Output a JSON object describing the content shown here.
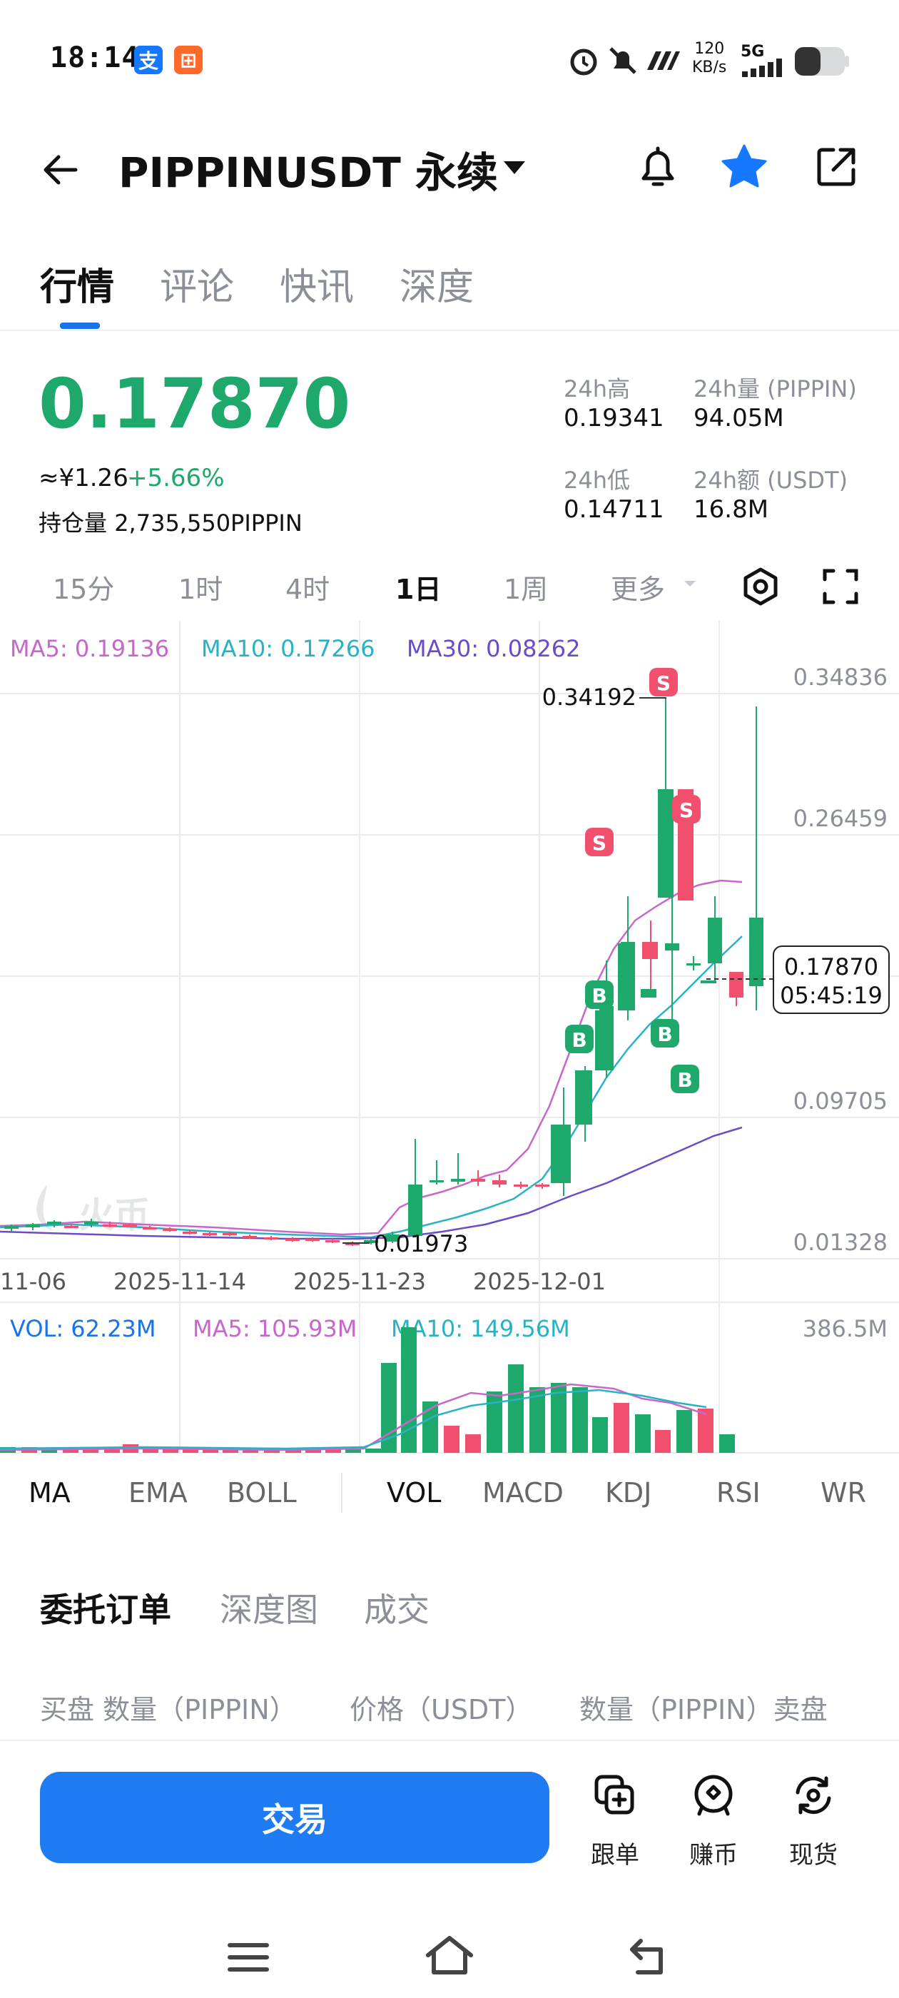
{
  "status_bar": {
    "time": "18:14",
    "net_speed": "120",
    "net_unit": "KB/s",
    "network": "5G"
  },
  "header": {
    "title": "PIPPINUSDT 永续"
  },
  "tabs": [
    {
      "label": "行情",
      "active": true
    },
    {
      "label": "评论"
    },
    {
      "label": "快讯"
    },
    {
      "label": "深度"
    }
  ],
  "price_panel": {
    "last_price": "0.17870",
    "cny_price": "≈¥1.26",
    "change_pct": "+5.66%",
    "open_interest_label": "持仓量",
    "open_interest_value": "2,735,550PIPPIN",
    "high_label": "24h高",
    "high_value": "0.19341",
    "vol_label": "24h量 (PIPPIN)",
    "vol_value": "94.05M",
    "low_label": "24h低",
    "low_value": "0.14711",
    "amount_label": "24h额 (USDT)",
    "amount_value": "16.8M",
    "colors": {
      "up": "#1fa86b",
      "down": "#f0506e"
    }
  },
  "intervals": [
    {
      "label": "15分"
    },
    {
      "label": "1时"
    },
    {
      "label": "4时"
    },
    {
      "label": "1日",
      "active": true
    },
    {
      "label": "1周"
    },
    {
      "label": "更多"
    }
  ],
  "chart": {
    "ma_legend": {
      "ma5": "MA5: 0.19136",
      "ma10": "MA10: 0.17266",
      "ma30": "MA30: 0.08262"
    },
    "price_labels": [
      "0.34836",
      "0.26459",
      "0.09705",
      "0.01328"
    ],
    "high_marker": "0.34192",
    "low_marker": "0.01973",
    "current_price_tag": "0.17870",
    "countdown": "05:45:19",
    "date_labels": [
      "11-06",
      "2025-11-14",
      "2025-11-23",
      "2025-12-01"
    ],
    "watermark": "火币",
    "vol_legend": {
      "vol": "VOL: 62.23M",
      "ma5": "MA5: 105.93M",
      "ma10": "MA10: 149.56M",
      "max": "386.5M"
    },
    "signal_labels": {
      "sell": "S",
      "buy": "B"
    },
    "colors": {
      "ma5": "#c966c9",
      "ma10": "#27b3c4",
      "ma30": "#6a4bc9",
      "vol_label": "#1a73e8"
    }
  },
  "indicators": [
    {
      "label": "MA"
    },
    {
      "label": "EMA"
    },
    {
      "label": "BOLL"
    },
    {
      "label": "VOL"
    },
    {
      "label": "MACD"
    },
    {
      "label": "KDJ"
    },
    {
      "label": "RSI"
    },
    {
      "label": "WR"
    }
  ],
  "order_tabs": [
    {
      "label": "委托订单",
      "active": true
    },
    {
      "label": "深度图"
    },
    {
      "label": "成交"
    }
  ],
  "order_header": {
    "bid": "买盘 数量（PIPPIN）",
    "price": "价格（USDT）",
    "ask": "数量（PIPPIN）卖盘"
  },
  "bottom_bar": {
    "trade_button": "交易",
    "follow": "跟单",
    "earn": "赚币",
    "spot": "现货"
  }
}
